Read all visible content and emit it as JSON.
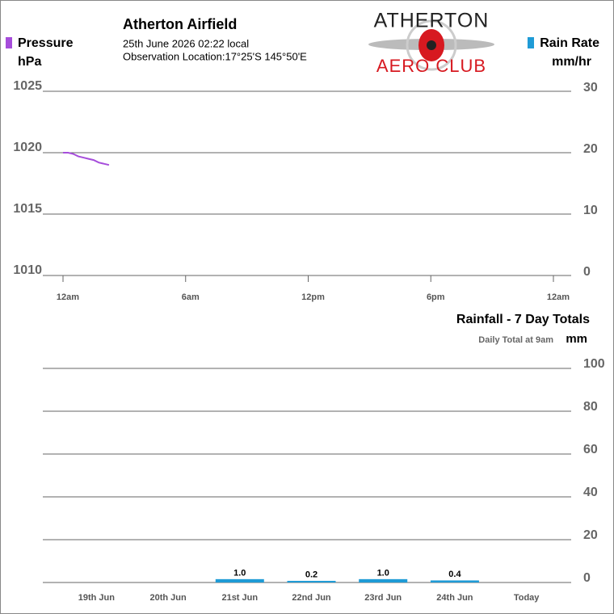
{
  "header": {
    "title": "Atherton Airfield",
    "date": "25th June 2026  02:22 local",
    "location": "Observation Location:17°25'S 145°50'E",
    "logo_top": "ATHERTON",
    "logo_bottom": "AERO CLUB"
  },
  "chart_data": [
    {
      "type": "line",
      "ylabel": "hPa",
      "y2label": "mm/hr",
      "x": [
        0,
        0.25,
        0.5,
        0.75,
        1,
        1.25,
        1.5,
        1.75,
        2,
        2.25
      ],
      "series": [
        {
          "name": "Pressure",
          "color": "#a64ddb",
          "values": [
            1020.0,
            1020.0,
            1019.9,
            1019.7,
            1019.6,
            1019.5,
            1019.4,
            1019.2,
            1019.1,
            1019.0
          ]
        },
        {
          "name": "Rain Rate",
          "color": "#1f9bd6",
          "axis": "y2",
          "values": [
            null,
            null,
            null,
            null,
            null,
            null,
            null,
            null,
            null,
            null
          ]
        }
      ],
      "xlim": [
        0,
        24
      ],
      "xticks": [
        {
          "value": 0,
          "label": "12am"
        },
        {
          "value": 6,
          "label": "6am"
        },
        {
          "value": 12,
          "label": "12pm"
        },
        {
          "value": 18,
          "label": "6pm"
        },
        {
          "value": 24,
          "label": "12am"
        }
      ],
      "ylim": [
        1010,
        1025
      ],
      "yticks": [
        1010,
        1015,
        1020,
        1025
      ],
      "y2lim": [
        0,
        30
      ],
      "y2ticks": [
        0,
        10,
        20,
        30
      ],
      "grid": true
    },
    {
      "type": "bar",
      "title": "Rainfall - 7 Day Totals",
      "subtitle": "Daily Total at 9am",
      "ylabel": "mm",
      "categories": [
        "19th Jun",
        "20th Jun",
        "21st Jun",
        "22nd Jun",
        "23rd Jun",
        "24th Jun",
        "Today"
      ],
      "values": [
        null,
        null,
        1.0,
        0.2,
        1.0,
        0.4,
        null
      ],
      "value_labels": [
        null,
        null,
        "1.0",
        "0.2",
        "1.0",
        "0.4",
        null
      ],
      "color": "#1f9bd6",
      "ylim": [
        0,
        100
      ],
      "yticks": [
        0,
        20,
        40,
        60,
        80,
        100
      ],
      "grid": true
    }
  ]
}
